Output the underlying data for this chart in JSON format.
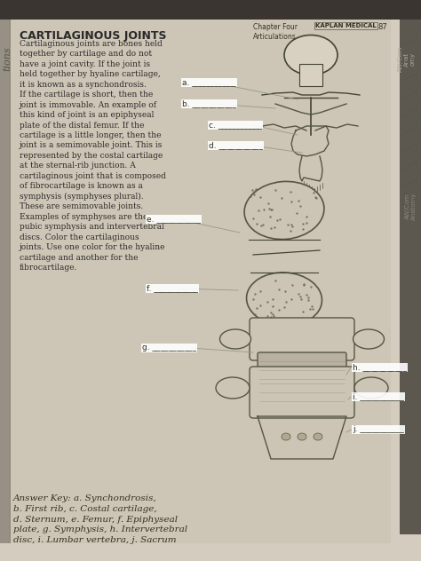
{
  "title": "CARTILAGINOUS JOINTS",
  "bg_color": "#c8c0b0",
  "page_bg": "#d4cdbf",
  "text_color": "#2a2a2a",
  "body_text": "Cartilaginous joints are bones held\ntogether by cartilage and do not\nhave a joint cavity. If the joint is\nheld together by hyaline cartilage,\nit is known as a synchondrosis.\nIf the cartilage is short, then the\njoint is immovable. An example of\nthis kind of joint is an epiphyseal\nplate of the distal femur. If the\ncartilage is a little longer, then the\njoint is a semimovable joint. This is\nrepresented by the costal cartilage\nat the sternal-rib junction. A\ncartilaginous joint that is composed\nof fibrocartilage is known as a\nsymphysis (symphyses plural).\nThese are semimovable joints.\nExamples of symphyses are the\npubic symphysis and intervertebral\ndiscs. Color the cartilaginous\njoints. Use one color for the hyaline\ncartilage and another for the\nfibrocartilage.",
  "chapter_text": "Chapter Four\nArticulations",
  "kaplan_text": "KAPLAN MEDICAL",
  "page_num": "87",
  "label_a": "a.",
  "label_b": "b.",
  "label_c": "c.",
  "label_d": "d.",
  "label_e": "e.",
  "label_f": "f.",
  "label_g": "g.",
  "label_h": "h.",
  "label_i": "i.",
  "label_j": "j.",
  "answer_key": "Answer Key: a. Synchondrosis,\nb. First rib, c. Costal cartilage,\nd. Sternum, e. Femur, f. Epiphyseal\nplate, g. Symphysis, h. Intervertebral\ndisc, i. Lumbar vertebra, j. Sacrum",
  "label_color": "#ffffff",
  "label_bg": "#b0a898",
  "line_color": "#aaaaaa",
  "dark_color": "#333333",
  "medium_gray": "#888880",
  "light_gray": "#bbbbaa",
  "answer_fontsize": 7.5,
  "body_fontsize": 6.5,
  "title_fontsize": 9,
  "sidebar_text": "tions",
  "sidebar_right": "AW/Com\nAnatomy"
}
